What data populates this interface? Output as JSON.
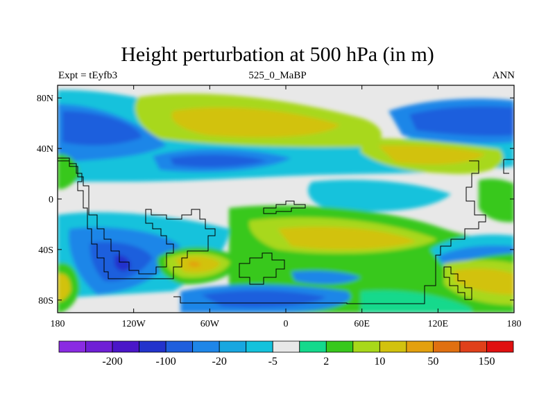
{
  "title": "Height perturbation at 500 hPa (in m)",
  "subtitle_left": "Expt = tEyfb3",
  "subtitle_center": "525_0_MaBP",
  "subtitle_right": "ANN",
  "map": {
    "projection": "cylindrical-equidistant",
    "lon_range": [
      -180,
      180
    ],
    "lat_range": [
      -90,
      90
    ],
    "x_ticks": [
      {
        "value": -180,
        "label": "180"
      },
      {
        "value": -120,
        "label": "120W"
      },
      {
        "value": -60,
        "label": "60W"
      },
      {
        "value": 0,
        "label": "0"
      },
      {
        "value": 60,
        "label": "60E"
      },
      {
        "value": 120,
        "label": "120E"
      },
      {
        "value": 180,
        "label": "180"
      }
    ],
    "y_ticks": [
      {
        "value": 80,
        "label": "80N"
      },
      {
        "value": 40,
        "label": "40N"
      },
      {
        "value": 0,
        "label": "0"
      },
      {
        "value": -40,
        "label": "40S"
      },
      {
        "value": -80,
        "label": "80S"
      }
    ],
    "background_color": "#e8e8e8"
  },
  "colorbar": {
    "colors": [
      "#8a2be2",
      "#6f1fd6",
      "#4a16c8",
      "#2233cc",
      "#1f5fdd",
      "#1e86e8",
      "#18a7e0",
      "#14c2dc",
      "#e8e8e8",
      "#14d98c",
      "#38c81c",
      "#a8d81a",
      "#d2c20e",
      "#e3a00e",
      "#e07010",
      "#e0401a",
      "#e01010"
    ],
    "labels": [
      {
        "after_index": 1,
        "text": "-200"
      },
      {
        "after_index": 3,
        "text": "-100"
      },
      {
        "after_index": 5,
        "text": "-20"
      },
      {
        "after_index": 7,
        "text": "-5"
      },
      {
        "after_index": 9,
        "text": "2"
      },
      {
        "after_index": 11,
        "text": "10"
      },
      {
        "after_index": 13,
        "text": "50"
      },
      {
        "after_index": 15,
        "text": "150"
      }
    ]
  }
}
